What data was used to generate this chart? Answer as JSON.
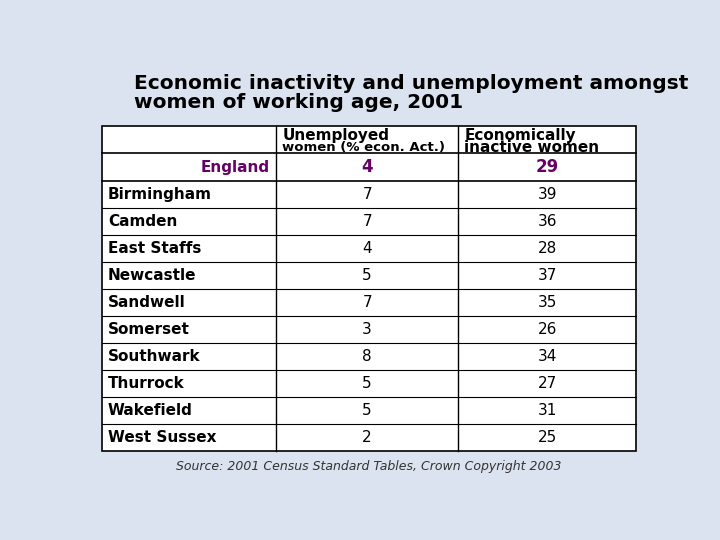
{
  "title_line1": "Economic inactivity and unemployment amongst",
  "title_line2": "women of working age, 2001",
  "col1_header_line1": "Unemployed",
  "col1_header_line2": "women (% econ. Act.)",
  "col2_header_line1": "Economically",
  "col2_header_line2": "inactive women",
  "england_label": "England",
  "england_col1": "4",
  "england_col2": "29",
  "rows": [
    [
      "Birmingham",
      "7",
      "39"
    ],
    [
      "Camden",
      "7",
      "36"
    ],
    [
      "East Staffs",
      "4",
      "28"
    ],
    [
      "Newcastle",
      "5",
      "37"
    ],
    [
      "Sandwell",
      "7",
      "35"
    ],
    [
      "Somerset",
      "3",
      "26"
    ],
    [
      "Southwark",
      "8",
      "34"
    ],
    [
      "Thurrock",
      "5",
      "27"
    ],
    [
      "Wakefield",
      "5",
      "31"
    ],
    [
      "West Sussex",
      "2",
      "25"
    ]
  ],
  "source_text": "Source: 2001 Census Standard Tables, Crown Copyright 2003",
  "title_fontsize": 14.5,
  "header_fontsize": 11,
  "cell_fontsize": 11,
  "source_fontsize": 9,
  "england_color": "#660066",
  "header_text_color": "#000000",
  "title_color": "#000000",
  "table_bg": "#ffffff",
  "border_color": "#000000",
  "title_bg": "#dce3f0",
  "deco_colors": [
    "#7b6b99",
    "#4a3f6b",
    "#8fa0c0",
    "#c0c8d8"
  ],
  "background_color": "#dce3f0"
}
